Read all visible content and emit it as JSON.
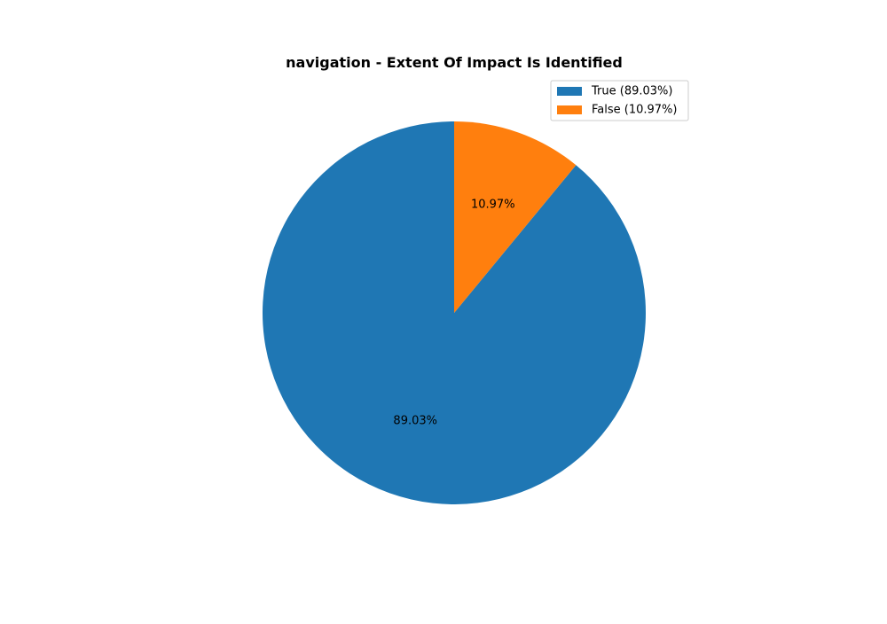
{
  "chart_data": {
    "type": "pie",
    "title": "navigation - Extent Of Impact Is Identified",
    "slices": [
      {
        "label": "True (89.03%)",
        "value": 89.03,
        "display": "89.03%",
        "color": "#1f77b4"
      },
      {
        "label": "False (10.97%)",
        "value": 10.97,
        "display": "10.97%",
        "color": "#ff7f0e"
      }
    ],
    "start_angle_deg": 90,
    "direction": "counterclockwise",
    "legend": {
      "placement": "top-right"
    }
  }
}
